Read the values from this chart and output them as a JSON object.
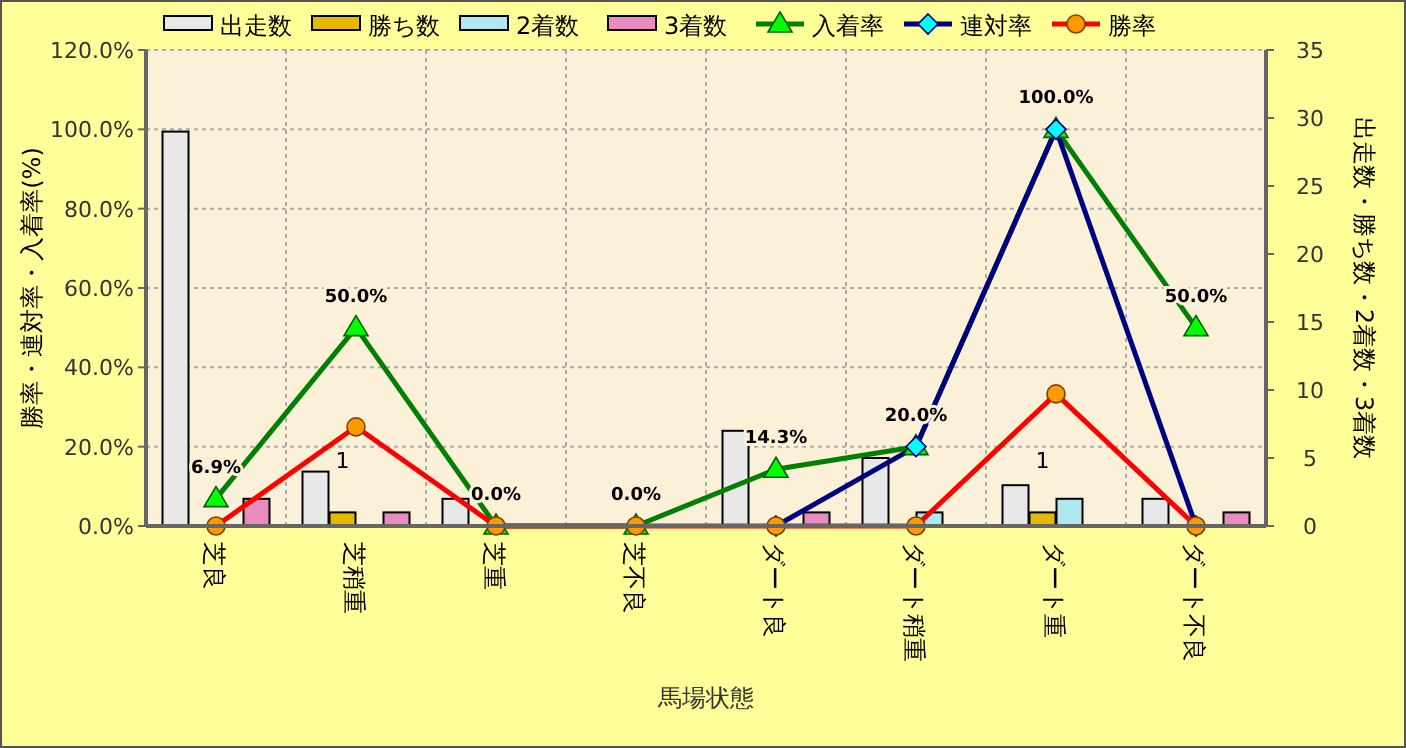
{
  "chart_data": {
    "type": "bar",
    "xlabel": "馬場状態",
    "ylabel": "勝率・連対率・入着率(%)",
    "y2label": "出走数・勝ち数・2着数・3着数",
    "categories": [
      "芝良",
      "芝稍重",
      "芝重",
      "芝不良",
      "ダート良",
      "ダート稍重",
      "ダート重",
      "ダート不良"
    ],
    "series": [
      {
        "name": "出走数",
        "axis": "y2",
        "color": "#e8e8e8",
        "values": [
          29,
          4,
          2,
          0,
          7,
          5,
          3,
          2
        ]
      },
      {
        "name": "勝ち数",
        "axis": "y2",
        "color": "#e6b800",
        "values": [
          0,
          1,
          0,
          0,
          0,
          0,
          1,
          0
        ],
        "value_labels": [
          null,
          "1",
          null,
          null,
          null,
          null,
          "1",
          null
        ]
      },
      {
        "name": "2着数",
        "axis": "y2",
        "color": "#b0e8f0",
        "values": [
          0,
          0,
          0,
          0,
          0,
          1,
          2,
          0
        ]
      },
      {
        "name": "3着数",
        "axis": "y2",
        "color": "#e88cc0",
        "values": [
          2,
          1,
          0,
          0,
          1,
          0,
          0,
          1
        ]
      },
      {
        "name": "入着率",
        "type": "line",
        "axis": "y",
        "color": "#008000",
        "marker": "triangle",
        "values": [
          6.9,
          50,
          0,
          0,
          14.3,
          20,
          100,
          50
        ],
        "value_labels": [
          "6.9%",
          "50.0%",
          "0.0%",
          "0.0%",
          "14.3%",
          "20.0%",
          "100.0%",
          "50.0%"
        ]
      },
      {
        "name": "連対率",
        "type": "line",
        "axis": "y",
        "color": "#000080",
        "marker": "diamond",
        "values": [
          null,
          null,
          null,
          null,
          0,
          20,
          100,
          0
        ]
      },
      {
        "name": "勝率",
        "type": "line",
        "axis": "y",
        "color": "#ff0000",
        "marker": "circle",
        "values": [
          0,
          25,
          0,
          0,
          0,
          0,
          33.3,
          0
        ]
      }
    ],
    "ylim": [
      0,
      120
    ],
    "yticks": [
      {
        "value": 0,
        "label": "0.0%"
      },
      {
        "value": 20,
        "label": "20.0%"
      },
      {
        "value": 40,
        "label": "40.0%"
      },
      {
        "value": 60,
        "label": "60.0%"
      },
      {
        "value": 80,
        "label": "80.0%"
      },
      {
        "value": 100,
        "label": "100.0%"
      },
      {
        "value": 120,
        "label": "120.0%"
      }
    ],
    "y2lim": [
      0,
      35
    ],
    "y2ticks": [
      0,
      5,
      10,
      15,
      20,
      25,
      30,
      35
    ],
    "grid": true,
    "legend": "top"
  }
}
